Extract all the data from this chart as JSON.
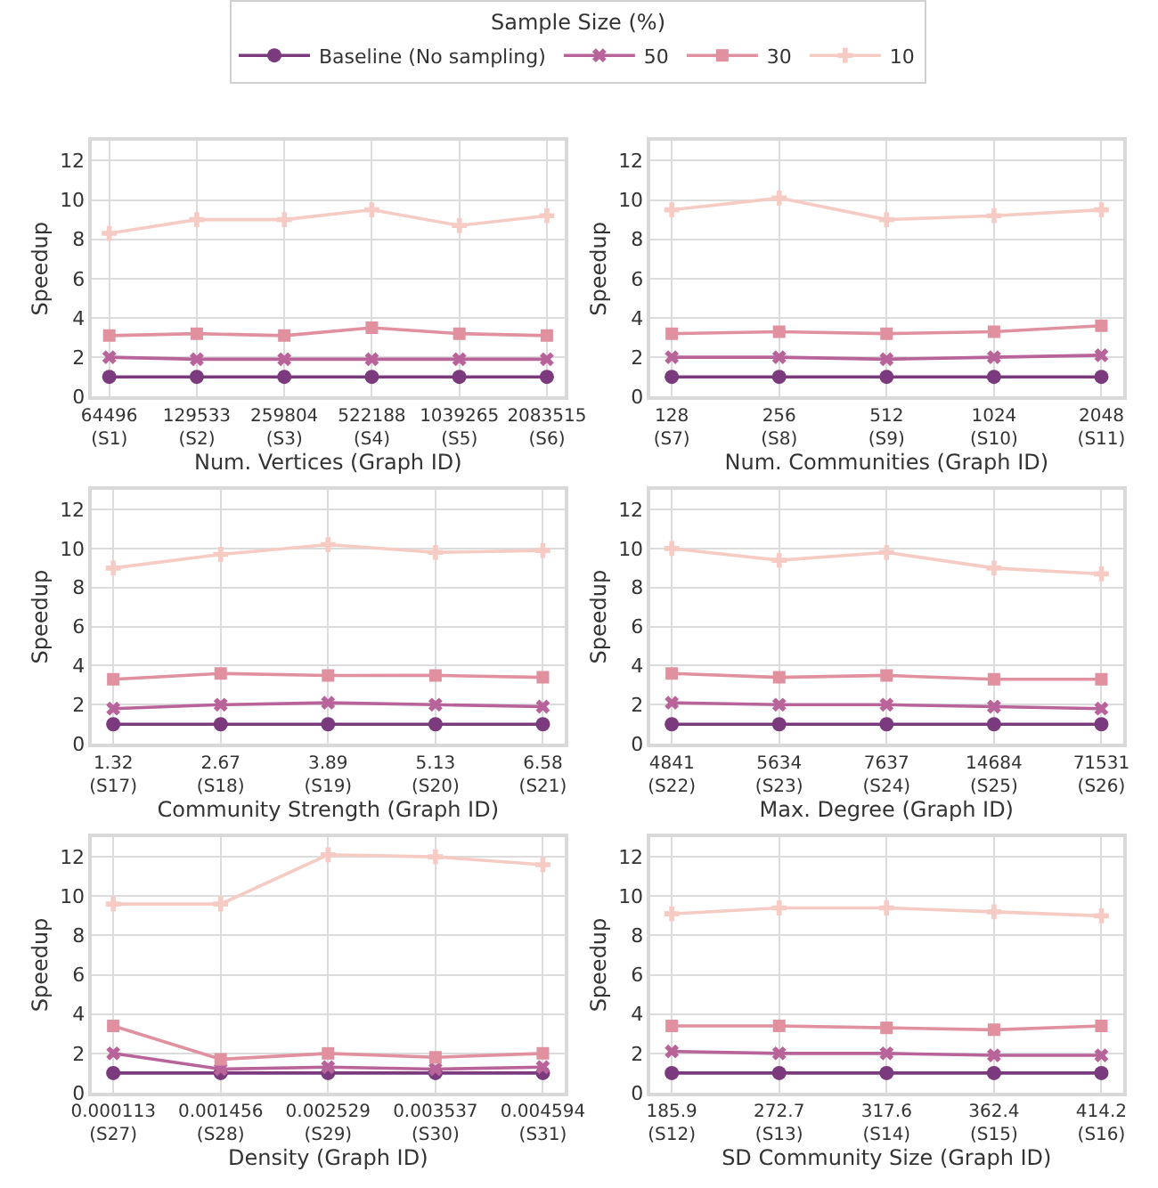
{
  "chart_data": [
    {
      "type": "line",
      "xlabel": "Num. Vertices (Graph ID)",
      "ylabel": "Speedup",
      "legend_title": "Sample Size (%)",
      "legend": "top",
      "grid": true,
      "ylim": [
        0,
        13
      ],
      "yticks": [
        0,
        2,
        4,
        6,
        8,
        10,
        12
      ],
      "categories": [
        "64496\n(S1)",
        "129533\n(S2)",
        "259804\n(S3)",
        "522188\n(S4)",
        "1039265\n(S5)",
        "2083515\n(S6)"
      ],
      "series": [
        {
          "name": "Baseline (No sampling)",
          "color": "#7b3a7d",
          "marker": "circle",
          "values": [
            1.0,
            1.0,
            1.0,
            1.0,
            1.0,
            1.0
          ]
        },
        {
          "name": "50",
          "color": "#b8649a",
          "marker": "x",
          "values": [
            2.0,
            1.9,
            1.9,
            1.9,
            1.9,
            1.9
          ]
        },
        {
          "name": "30",
          "color": "#e0909f",
          "marker": "square",
          "values": [
            3.1,
            3.2,
            3.1,
            3.5,
            3.2,
            3.1
          ]
        },
        {
          "name": "10",
          "color": "#f5cbc4",
          "marker": "cross",
          "values": [
            8.3,
            9.0,
            9.0,
            9.5,
            8.7,
            9.2
          ]
        }
      ]
    },
    {
      "type": "line",
      "xlabel": "Num. Communities (Graph ID)",
      "ylabel": "Speedup",
      "grid": true,
      "ylim": [
        0,
        13
      ],
      "yticks": [
        0,
        2,
        4,
        6,
        8,
        10,
        12
      ],
      "categories": [
        "128\n(S7)",
        "256\n(S8)",
        "512\n(S9)",
        "1024\n(S10)",
        "2048\n(S11)"
      ],
      "series": [
        {
          "color": "#7b3a7d",
          "marker": "circle",
          "values": [
            1.0,
            1.0,
            1.0,
            1.0,
            1.0
          ]
        },
        {
          "color": "#b8649a",
          "marker": "x",
          "values": [
            2.0,
            2.0,
            1.9,
            2.0,
            2.1
          ]
        },
        {
          "color": "#e0909f",
          "marker": "square",
          "values": [
            3.2,
            3.3,
            3.2,
            3.3,
            3.6
          ]
        },
        {
          "color": "#f5cbc4",
          "marker": "cross",
          "values": [
            9.5,
            10.1,
            9.0,
            9.2,
            9.5
          ]
        }
      ]
    },
    {
      "type": "line",
      "xlabel": "Community Strength (Graph ID)",
      "ylabel": "Speedup",
      "grid": true,
      "ylim": [
        0,
        13
      ],
      "yticks": [
        0,
        2,
        4,
        6,
        8,
        10,
        12
      ],
      "categories": [
        "1.32\n(S17)",
        "2.67\n(S18)",
        "3.89\n(S19)",
        "5.13\n(S20)",
        "6.58\n(S21)"
      ],
      "series": [
        {
          "color": "#7b3a7d",
          "marker": "circle",
          "values": [
            1.0,
            1.0,
            1.0,
            1.0,
            1.0
          ]
        },
        {
          "color": "#b8649a",
          "marker": "x",
          "values": [
            1.8,
            2.0,
            2.1,
            2.0,
            1.9
          ]
        },
        {
          "color": "#e0909f",
          "marker": "square",
          "values": [
            3.3,
            3.6,
            3.5,
            3.5,
            3.4
          ]
        },
        {
          "color": "#f5cbc4",
          "marker": "cross",
          "values": [
            9.0,
            9.7,
            10.2,
            9.8,
            9.9
          ]
        }
      ]
    },
    {
      "type": "line",
      "xlabel": "Max. Degree (Graph ID)",
      "ylabel": "Speedup",
      "grid": true,
      "ylim": [
        0,
        13
      ],
      "yticks": [
        0,
        2,
        4,
        6,
        8,
        10,
        12
      ],
      "categories": [
        "4841\n(S22)",
        "5634\n(S23)",
        "7637\n(S24)",
        "14684\n(S25)",
        "71531\n(S26)"
      ],
      "series": [
        {
          "color": "#7b3a7d",
          "marker": "circle",
          "values": [
            1.0,
            1.0,
            1.0,
            1.0,
            1.0
          ]
        },
        {
          "color": "#b8649a",
          "marker": "x",
          "values": [
            2.1,
            2.0,
            2.0,
            1.9,
            1.8
          ]
        },
        {
          "color": "#e0909f",
          "marker": "square",
          "values": [
            3.6,
            3.4,
            3.5,
            3.3,
            3.3
          ]
        },
        {
          "color": "#f5cbc4",
          "marker": "cross",
          "values": [
            10.0,
            9.4,
            9.8,
            9.0,
            8.7
          ]
        }
      ]
    },
    {
      "type": "line",
      "xlabel": "Density (Graph ID)",
      "ylabel": "Speedup",
      "grid": true,
      "ylim": [
        0,
        13
      ],
      "yticks": [
        0,
        2,
        4,
        6,
        8,
        10,
        12
      ],
      "categories": [
        "0.000113\n(S27)",
        "0.001456\n(S28)",
        "0.002529\n(S29)",
        "0.003537\n(S30)",
        "0.004594\n(S31)"
      ],
      "series": [
        {
          "color": "#7b3a7d",
          "marker": "circle",
          "values": [
            1.0,
            1.0,
            1.0,
            1.0,
            1.0
          ]
        },
        {
          "color": "#b8649a",
          "marker": "x",
          "values": [
            2.0,
            1.2,
            1.3,
            1.2,
            1.3
          ]
        },
        {
          "color": "#e0909f",
          "marker": "square",
          "values": [
            3.4,
            1.7,
            2.0,
            1.8,
            2.0
          ]
        },
        {
          "color": "#f5cbc4",
          "marker": "cross",
          "values": [
            9.6,
            9.6,
            12.1,
            12.0,
            11.6
          ]
        }
      ]
    },
    {
      "type": "line",
      "xlabel": "SD Community Size (Graph ID)",
      "ylabel": "Speedup",
      "grid": true,
      "ylim": [
        0,
        13
      ],
      "yticks": [
        0,
        2,
        4,
        6,
        8,
        10,
        12
      ],
      "categories": [
        "185.9\n(S12)",
        "272.7\n(S13)",
        "317.6\n(S14)",
        "362.4\n(S15)",
        "414.2\n(S16)"
      ],
      "series": [
        {
          "color": "#7b3a7d",
          "marker": "circle",
          "values": [
            1.0,
            1.0,
            1.0,
            1.0,
            1.0
          ]
        },
        {
          "color": "#b8649a",
          "marker": "x",
          "values": [
            2.1,
            2.0,
            2.0,
            1.9,
            1.9
          ]
        },
        {
          "color": "#e0909f",
          "marker": "square",
          "values": [
            3.4,
            3.4,
            3.3,
            3.2,
            3.4
          ]
        },
        {
          "color": "#f5cbc4",
          "marker": "cross",
          "values": [
            9.1,
            9.4,
            9.4,
            9.2,
            9.0
          ]
        }
      ]
    }
  ]
}
